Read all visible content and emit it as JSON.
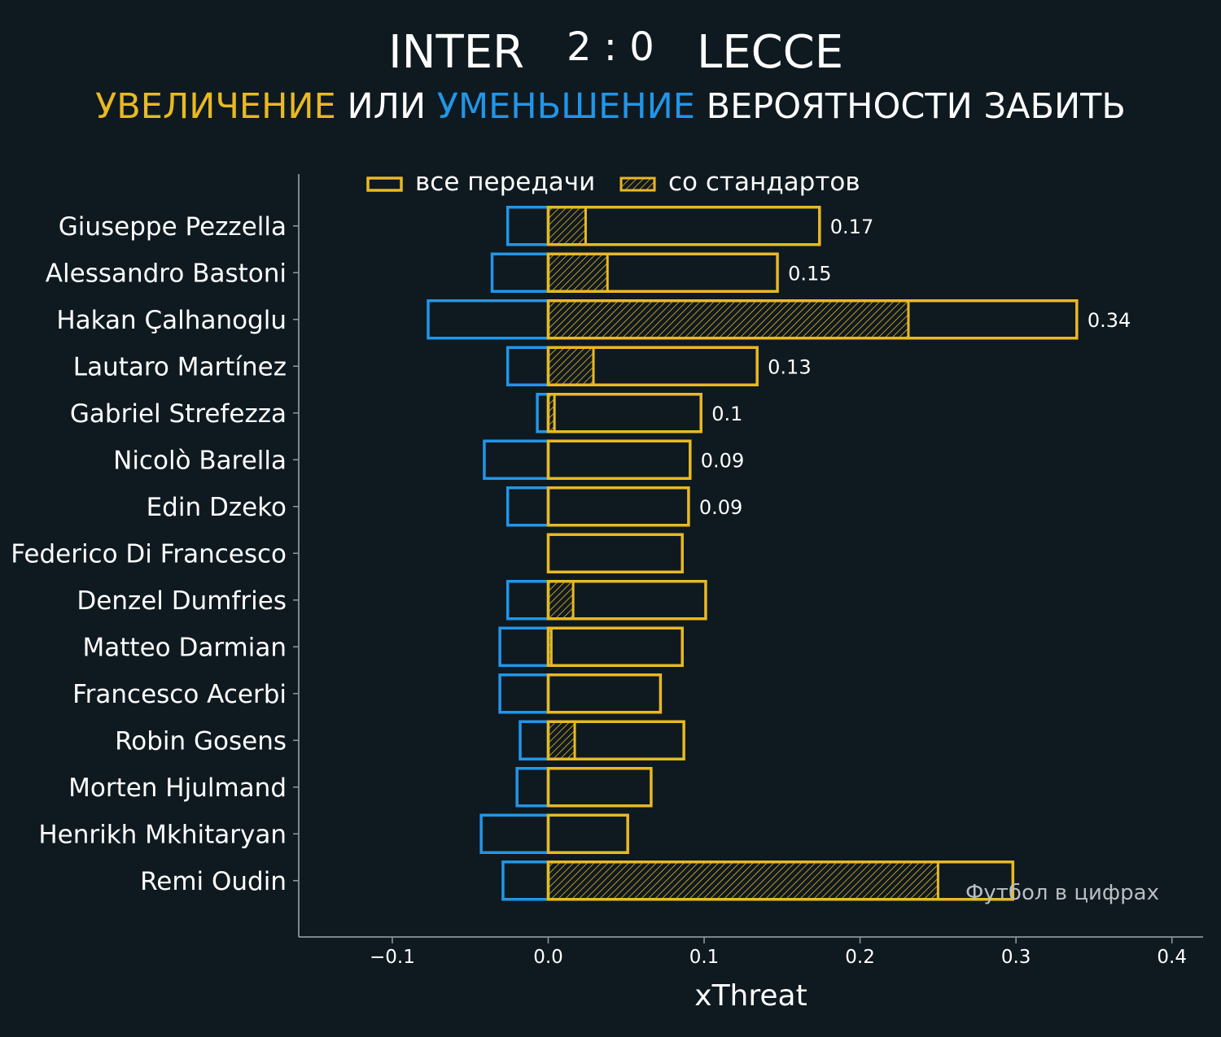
{
  "header": {
    "home_team": "INTER",
    "score": "2 : 0",
    "away_team": "LECCE",
    "subtitle_parts": [
      {
        "text": "УВЕЛИЧЕНИЕ",
        "color": "#e8b923"
      },
      {
        "text": " ИЛИ ",
        "color": "#ffffff"
      },
      {
        "text": "УМЕНЬШЕНИЕ",
        "color": "#2196e8"
      },
      {
        "text": " ВЕРОЯТНОСТИ ЗАБИТЬ",
        "color": "#ffffff"
      }
    ]
  },
  "colors": {
    "background": "#0f1920",
    "positive": "#e8b923",
    "negative": "#2196e8",
    "axis": "#8a9499",
    "text": "#ffffff",
    "watermark": "#b8bec2"
  },
  "watermark": "Футбол в цифрах",
  "chart_data": {
    "type": "bar",
    "orientation": "horizontal",
    "xlabel": "xThreat",
    "xlim": [
      -0.16,
      0.42
    ],
    "xticks": [
      -0.1,
      0.0,
      0.1,
      0.2,
      0.3,
      0.4
    ],
    "xtick_labels": [
      "−0.1",
      "0.0",
      "0.1",
      "0.2",
      "0.3",
      "0.4"
    ],
    "legend": {
      "position": "top",
      "entries": [
        {
          "label": "все передачи",
          "style": "outline"
        },
        {
          "label": "со стандартов",
          "style": "hatched"
        }
      ]
    },
    "categories": [
      "Giuseppe Pezzella",
      "Alessandro Bastoni",
      "Hakan Çalhanoglu",
      "Lautaro Martínez",
      "Gabriel Strefezza",
      "Nicolò Barella",
      "Edin Dzeko",
      "Federico Di Francesco",
      "Denzel Dumfries",
      "Matteo Darmian",
      "Francesco Acerbi",
      "Robin Gosens",
      "Morten Hjulmand",
      "Henrikh Mkhitaryan",
      "Remi Oudin"
    ],
    "series": [
      {
        "name": "все передачи",
        "sign": "positive",
        "values": [
          0.174,
          0.147,
          0.339,
          0.134,
          0.098,
          0.091,
          0.09,
          0.086,
          0.101,
          0.086,
          0.072,
          0.087,
          0.066,
          0.051,
          0.298
        ]
      },
      {
        "name": "со стандартов",
        "sign": "positive",
        "values": [
          0.024,
          0.038,
          0.231,
          0.029,
          0.004,
          0.0,
          0.0,
          0.0,
          0.016,
          0.002,
          0.0,
          0.017,
          0.0,
          0.0,
          0.25
        ]
      },
      {
        "sign": "negative",
        "values": [
          -0.026,
          -0.036,
          -0.077,
          -0.026,
          -0.007,
          -0.041,
          -0.026,
          0.0,
          -0.026,
          -0.031,
          -0.031,
          -0.018,
          -0.02,
          -0.043,
          -0.029
        ]
      }
    ],
    "net_labels": [
      "0.17",
      "0.15",
      "0.34",
      "0.13",
      "0.1",
      "0.09",
      "0.09",
      "",
      "",
      "",
      "",
      "",
      "",
      "",
      ""
    ]
  }
}
